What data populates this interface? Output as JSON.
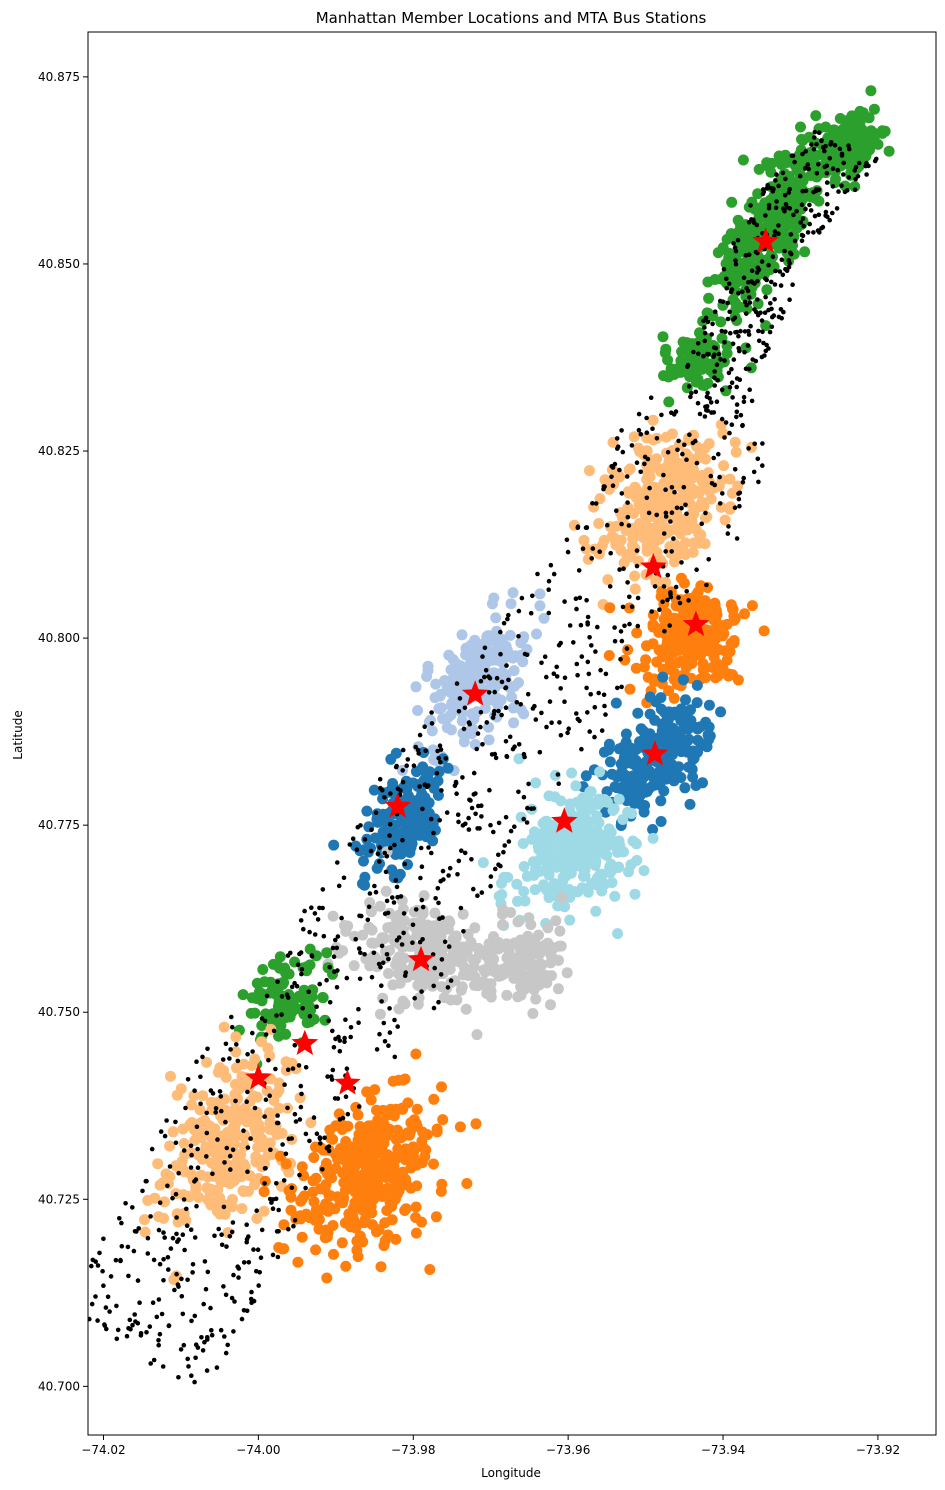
{
  "chart_data": {
    "type": "scatter",
    "title": "Manhattan Member Locations and MTA Bus Stations",
    "xlabel": "Longitude",
    "ylabel": "Latitude",
    "xlim": [
      -74.022,
      -73.9125
    ],
    "ylim": [
      40.6935,
      40.881
    ],
    "xticks": [
      -74.02,
      -74.0,
      -73.98,
      -73.96,
      -73.94,
      -73.92
    ],
    "xtick_labels": [
      "−74.02",
      "−74.00",
      "−73.98",
      "−73.96",
      "−73.94",
      "−73.92"
    ],
    "yticks": [
      40.7,
      40.725,
      40.75,
      40.775,
      40.8,
      40.825,
      40.85,
      40.875
    ],
    "ytick_labels": [
      "40.700",
      "40.725",
      "40.750",
      "40.775",
      "40.800",
      "40.825",
      "40.850",
      "40.875"
    ],
    "grid": false,
    "legend": "none",
    "cluster_colors": {
      "green": "#2ca02c",
      "light_orange": "#ffbb78",
      "orange": "#ff7f0e",
      "blue": "#1f77b4",
      "light_blue": "#aec7e8",
      "cyan": "#9edae5",
      "gray": "#c7c7c7"
    },
    "station_color": "#000000",
    "center_color": "#ff0000",
    "member_clusters": [
      {
        "color": "green",
        "center": [
          -73.934,
          40.855
        ],
        "spread": [
          0.004,
          0.012
        ],
        "count": 320
      },
      {
        "color": "green",
        "center": [
          -73.924,
          40.865
        ],
        "spread": [
          0.004,
          0.005
        ],
        "count": 140
      },
      {
        "color": "green",
        "center": [
          -73.943,
          40.837
        ],
        "spread": [
          0.004,
          0.003
        ],
        "count": 90
      },
      {
        "color": "light_orange",
        "center": [
          -73.948,
          40.818
        ],
        "spread": [
          0.007,
          0.01
        ],
        "count": 320
      },
      {
        "color": "orange",
        "center": [
          -73.944,
          40.8
        ],
        "spread": [
          0.006,
          0.006
        ],
        "count": 240
      },
      {
        "color": "light_blue",
        "center": [
          -73.972,
          40.794
        ],
        "spread": [
          0.005,
          0.009
        ],
        "count": 220
      },
      {
        "color": "blue",
        "center": [
          -73.949,
          40.784
        ],
        "spread": [
          0.005,
          0.008
        ],
        "count": 240
      },
      {
        "color": "blue",
        "center": [
          -73.981,
          40.776
        ],
        "spread": [
          0.004,
          0.008
        ],
        "count": 180
      },
      {
        "color": "cyan",
        "center": [
          -73.959,
          40.772
        ],
        "spread": [
          0.007,
          0.008
        ],
        "count": 260
      },
      {
        "color": "gray",
        "center": [
          -73.979,
          40.758
        ],
        "spread": [
          0.01,
          0.006
        ],
        "count": 230
      },
      {
        "color": "gray",
        "center": [
          -73.966,
          40.757
        ],
        "spread": [
          0.005,
          0.005
        ],
        "count": 120
      },
      {
        "color": "green",
        "center": [
          -73.996,
          40.752
        ],
        "spread": [
          0.005,
          0.006
        ],
        "count": 100
      },
      {
        "color": "light_orange",
        "center": [
          -74.004,
          40.733
        ],
        "spread": [
          0.007,
          0.012
        ],
        "count": 260
      },
      {
        "color": "orange",
        "center": [
          -73.986,
          40.728
        ],
        "spread": [
          0.008,
          0.01
        ],
        "count": 360
      }
    ],
    "bus_station_count": 1200,
    "cluster_centers": [
      {
        "x": -73.9345,
        "y": 40.853
      },
      {
        "x": -73.949,
        "y": 40.8095
      },
      {
        "x": -73.9435,
        "y": 40.8018
      },
      {
        "x": -73.972,
        "y": 40.7925
      },
      {
        "x": -73.9488,
        "y": 40.7845
      },
      {
        "x": -73.982,
        "y": 40.7775
      },
      {
        "x": -73.9605,
        "y": 40.7755
      },
      {
        "x": -73.979,
        "y": 40.757
      },
      {
        "x": -73.994,
        "y": 40.7458
      },
      {
        "x": -74.0,
        "y": 40.7412
      },
      {
        "x": -73.9885,
        "y": 40.7405
      }
    ]
  }
}
